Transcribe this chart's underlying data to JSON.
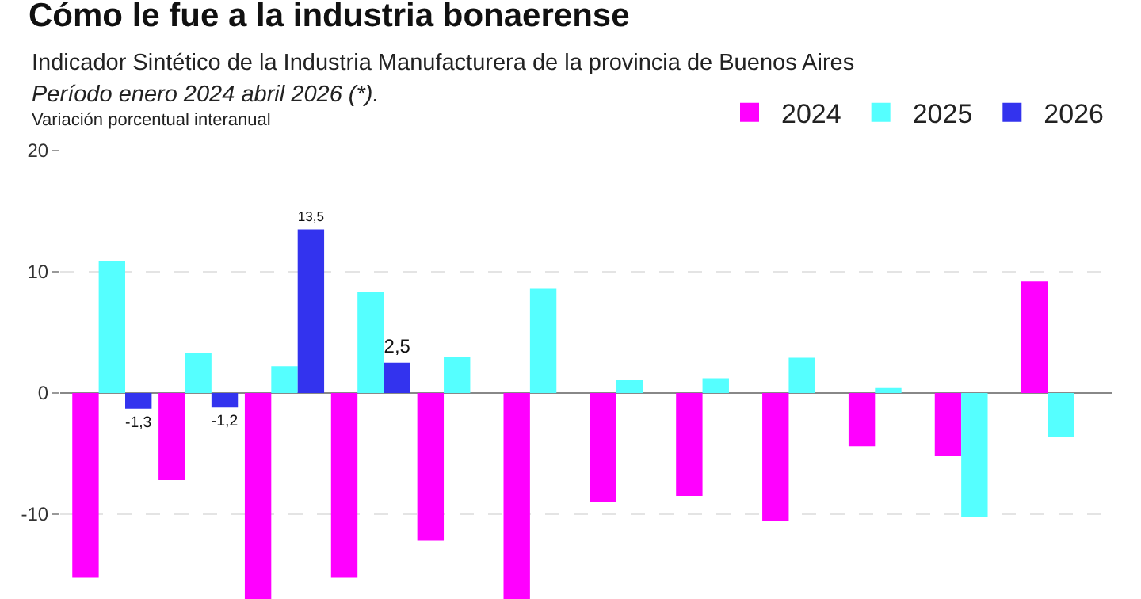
{
  "chart_data": {
    "type": "bar",
    "title": "Cómo le fue a la industria bonaerense",
    "subtitle": "Indicador Sintético de la Industria Manufacturera de la provincia de Buenos Aires",
    "annotations": [
      "Período enero 2024 abril 2026 (*)."
    ],
    "ylabel": "Variación porcentual interanual",
    "categories": [
      null,
      null,
      null,
      null,
      null,
      null,
      null,
      null,
      null,
      null,
      null,
      null
    ],
    "series": [
      {
        "name": "2024",
        "color": "#ff00ff",
        "values": [
          -15.2,
          -7.2,
          -17,
          -15.2,
          -12.2,
          -17,
          -9.0,
          -8.5,
          -10.6,
          -4.4,
          -5.2,
          9.2
        ]
      },
      {
        "name": "2025",
        "color": "#55ffff",
        "values": [
          10.9,
          3.3,
          2.2,
          8.3,
          3.0,
          8.6,
          1.1,
          1.2,
          2.9,
          0.4,
          -10.2,
          -3.6
        ]
      },
      {
        "name": "2026",
        "color": "#3333ee",
        "values": [
          -1.3,
          -1.2,
          13.5,
          2.5,
          null,
          null,
          null,
          null,
          null,
          null,
          null,
          null
        ],
        "value_labels": [
          "-1,3",
          "-1,2",
          "13,5",
          "2,5",
          null,
          null,
          null,
          null,
          null,
          null,
          null,
          null
        ]
      }
    ],
    "ylim": [
      -17,
      20
    ],
    "yticks": [
      20,
      10,
      0,
      -10
    ],
    "grid": "y",
    "legend": "top right"
  }
}
